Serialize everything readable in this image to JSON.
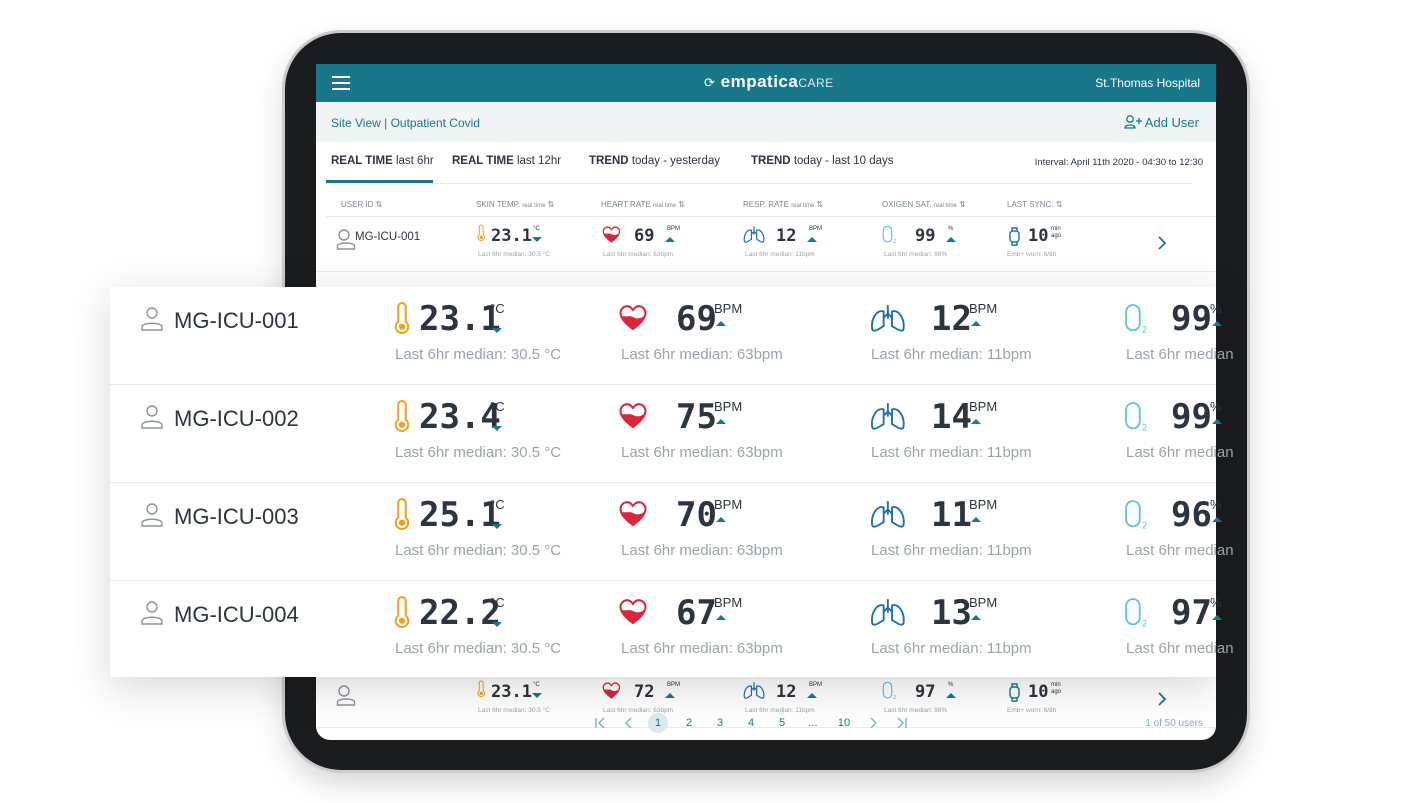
{
  "header": {
    "logo_main": "empatica",
    "logo_sub": "CARE",
    "hospital": "St.Thomas Hospital"
  },
  "breadcrumb": "Site View | Outpatient Covid",
  "add_user": "Add User",
  "tabs": [
    {
      "bold": "REAL TIME",
      "rest": "last 6hr"
    },
    {
      "bold": "REAL TIME",
      "rest": "last 12hr"
    },
    {
      "bold": "TREND",
      "rest": "today - yesterday"
    },
    {
      "bold": "TREND",
      "rest": "today - last 10 days"
    }
  ],
  "interval": "Interval: April 11th 2020 - 04:30 to 12:30",
  "columns": [
    {
      "name": "USER ID"
    },
    {
      "name": "SKIN TEMP.",
      "sub": "real time"
    },
    {
      "name": "HEART RATE",
      "sub": "real time"
    },
    {
      "name": "RESP. RATE",
      "sub": "real time"
    },
    {
      "name": "OXIGEN SAT.",
      "sub": "real time"
    },
    {
      "name": "LAST SYNC."
    }
  ],
  "units": {
    "temp": "°C",
    "bpm": "BPM",
    "pct": "%",
    "min": "min",
    "ago": "ago"
  },
  "table": {
    "rows": [
      {
        "id": "MG-ICU-001",
        "temp": 23.1,
        "temp_median": "Last 6hr median: 30.5 °C",
        "hr": 69,
        "hr_median": "Last 6hr median: 63bpm",
        "rr": 12,
        "rr_median": "Last 6hr median: 11bpm",
        "ox": 99,
        "ox_median": "Last 6hr median: 98%",
        "sync": 10,
        "worn": "Emb+ worn: 6/8h"
      },
      {
        "temp": 23.1,
        "temp_median": "Last 6hr median: 30.5 °C",
        "hr": 72,
        "hr_median": "Last 6hr median: 63bpm",
        "rr": 12,
        "rr_median": "Last 6hr median: 11bpm",
        "ox": 97,
        "ox_median": "Last 6hr median: 98%",
        "sync": 10,
        "worn": "Emb+ worn: 6/8h"
      }
    ]
  },
  "zoom": {
    "rows": [
      {
        "id": "MG-ICU-001",
        "temp": 23.1,
        "temp_median": "Last 6hr median: 30.5 °C",
        "hr": 69,
        "hr_median": "Last 6hr median: 63bpm",
        "rr": 12,
        "rr_median": "Last 6hr median: 11bpm",
        "ox": 99,
        "ox_median": "Last 6hr median"
      },
      {
        "id": "MG-ICU-002",
        "temp": 23.4,
        "temp_median": "Last 6hr median: 30.5 °C",
        "hr": 75,
        "hr_median": "Last 6hr median: 63bpm",
        "rr": 14,
        "rr_median": "Last 6hr median: 11bpm",
        "ox": 99,
        "ox_median": "Last 6hr median"
      },
      {
        "id": "MG-ICU-003",
        "temp": 25.1,
        "temp_median": "Last 6hr median: 30.5 °C",
        "hr": 70,
        "hr_median": "Last 6hr median: 63bpm",
        "rr": 11,
        "rr_median": "Last 6hr median: 11bpm",
        "ox": 96,
        "ox_median": "Last 6hr median"
      },
      {
        "id": "MG-ICU-004",
        "temp": 22.2,
        "temp_median": "Last 6hr median: 30.5 °C",
        "hr": 67,
        "hr_median": "Last 6hr median: 63bpm",
        "rr": 13,
        "rr_median": "Last 6hr median: 11bpm",
        "ox": 97,
        "ox_median": "Last 6hr median"
      }
    ]
  },
  "pagination": {
    "pages": [
      "1",
      "2",
      "3",
      "4",
      "5",
      "...",
      "10"
    ],
    "summary": "1 of 50 users"
  }
}
